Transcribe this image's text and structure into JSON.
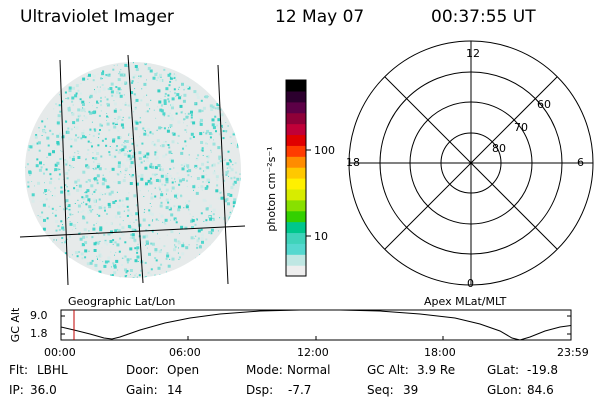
{
  "header": {
    "instrument": "Ultraviolet Imager",
    "date": "12 May 07",
    "time": "00:37:55 UT"
  },
  "colorbar": {
    "unit_label": "photon cm⁻²s⁻¹",
    "ticks": [
      "100",
      "10"
    ],
    "colors": [
      "#eeeeee",
      "#bfe7e3",
      "#55d8cf",
      "#3fd3ba",
      "#00c78c",
      "#33d000",
      "#88e000",
      "#d7ec00",
      "#fff000",
      "#ffc800",
      "#ff8c00",
      "#ff3c00",
      "#e00000",
      "#c00038",
      "#8e0038",
      "#5c0046",
      "#2c002e",
      "#000000"
    ]
  },
  "left_panel": {
    "caption": "Geographic Lat/Lon"
  },
  "right_panel": {
    "caption": "Apex MLat/MLT",
    "mlt_labels": {
      "top": "12",
      "bottom": "0",
      "left": "18",
      "right": "6"
    },
    "lat_labels": [
      "60",
      "70",
      "80"
    ]
  },
  "strip": {
    "ylabel": "GC Alt",
    "yticks": [
      "9.0",
      "1.8"
    ],
    "xticks": [
      "00:00",
      "06:00",
      "12:00",
      "18:00",
      "23:59"
    ]
  },
  "info": {
    "flt_label": "Flt:",
    "flt_value": "LBHL",
    "ip_label": "IP:",
    "ip_value": "36.0",
    "door_label": "Door:",
    "door_value": "Open",
    "gain_label": "Gain:",
    "gain_value": "14",
    "mode_label": "Mode:",
    "mode_value": "Normal",
    "dsp_label": "Dsp:",
    "dsp_value": "-7.7",
    "gcalt_label": "GC Alt:",
    "gcalt_value": "3.9 Re",
    "seq_label": "Seq:",
    "seq_value": "39",
    "glat_label": "GLat:",
    "glat_value": "-19.8",
    "glon_label": "GLon:",
    "glon_value": "84.6"
  }
}
